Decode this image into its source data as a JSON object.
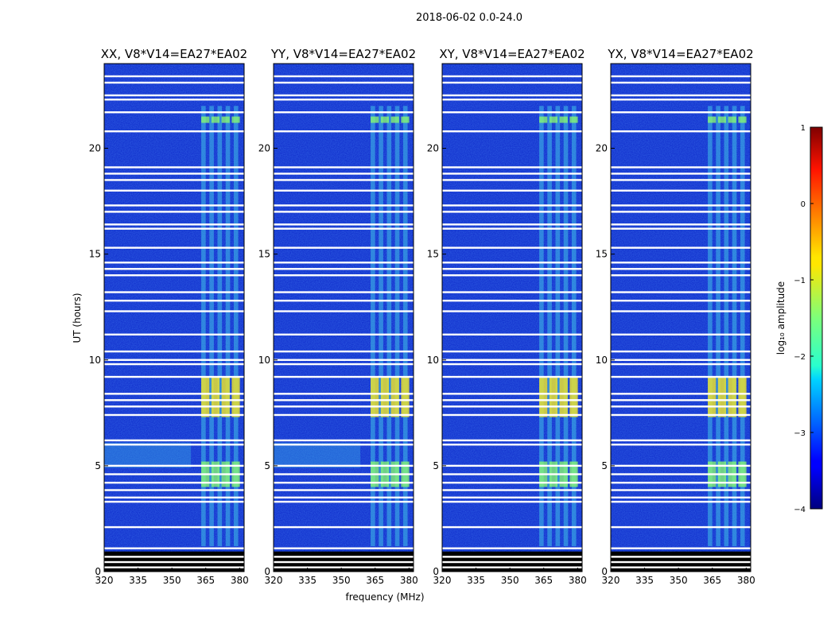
{
  "chart_data": {
    "type": "heatmap",
    "title": "2018-06-02 0.0-24.0",
    "xlabel": "frequency (MHz)",
    "ylabel": "UT (hours)",
    "xlim": [
      320,
      382
    ],
    "ylim": [
      0,
      24
    ],
    "xticks": [
      "320",
      "335",
      "350",
      "365",
      "380"
    ],
    "yticks": [
      "0",
      "5",
      "10",
      "15",
      "20"
    ],
    "panels": [
      {
        "title": "XX, V8*V14=EA27*EA02"
      },
      {
        "title": "YY, V8*V14=EA27*EA02"
      },
      {
        "title": "XY, V8*V14=EA27*EA02"
      },
      {
        "title": "YX, V8*V14=EA27*EA02"
      }
    ],
    "colorbar": {
      "label": "log₁₀ amplitude",
      "range": [
        -4,
        1
      ],
      "ticks": [
        "1",
        "0",
        "−1",
        "−2",
        "−3",
        "−4"
      ],
      "colormap": "jet"
    },
    "active_band_mhz": [
      363,
      381
    ],
    "bright_rfi_windows_ut": [
      [
        7.3,
        9.2
      ],
      [
        4.0,
        5.2
      ],
      [
        21.2,
        21.5
      ]
    ],
    "flagged_ut_rows": [
      0.2,
      0.45,
      0.7,
      1.1,
      2.1,
      3.3,
      3.5,
      3.85,
      4.2,
      4.6,
      5.0,
      6.0,
      6.2,
      7.4,
      7.8,
      8.1,
      8.4,
      9.2,
      9.8,
      10.0,
      10.4,
      11.2,
      12.3,
      12.8,
      13.2,
      14.0,
      14.3,
      14.6,
      15.3,
      16.2,
      16.4,
      17.0,
      17.3,
      18.0,
      18.5,
      18.8,
      19.1,
      20.8,
      21.7,
      22.3,
      22.5,
      23.1,
      23.4
    ]
  },
  "colors": {
    "background_low": "#0a24c8",
    "band_mid": "#3fc0e8",
    "rfi_high": "#e8e030",
    "flag": "#ffffff",
    "flag_dark": "#000000"
  }
}
